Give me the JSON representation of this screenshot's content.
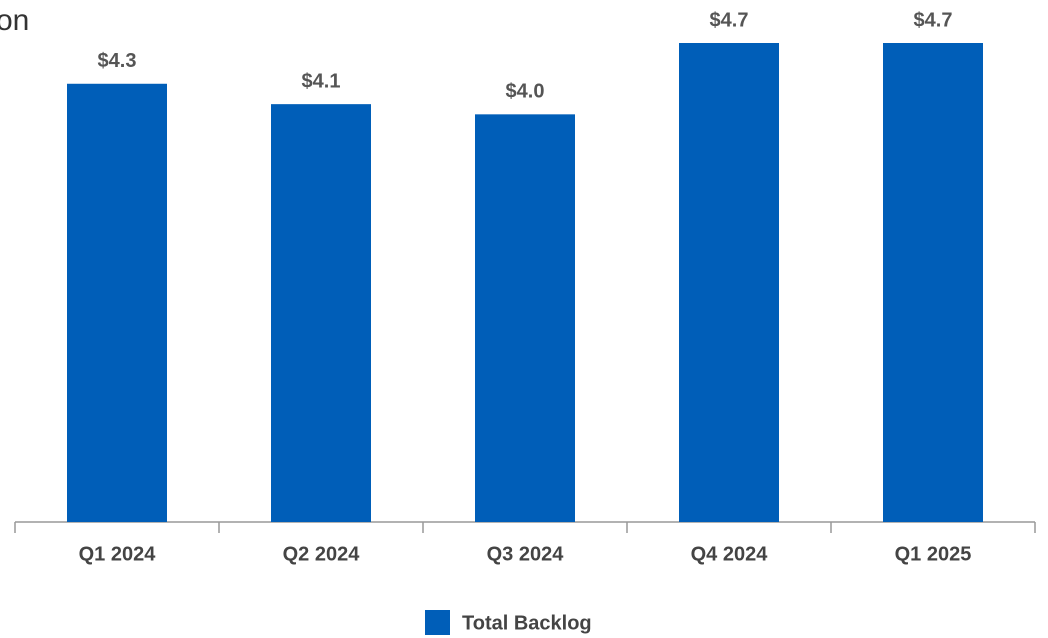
{
  "chart_data": {
    "type": "bar",
    "title": "on",
    "categories": [
      "Q1 2024",
      "Q2 2024",
      "Q3 2024",
      "Q4 2024",
      "Q1 2025"
    ],
    "values": [
      4.3,
      4.1,
      4.0,
      4.7,
      4.7
    ],
    "value_labels": [
      "$4.3",
      "$4.1",
      "$4.0",
      "$4.7",
      "$4.7"
    ],
    "color": "#005eb8",
    "series_name": "Total Backlog"
  }
}
